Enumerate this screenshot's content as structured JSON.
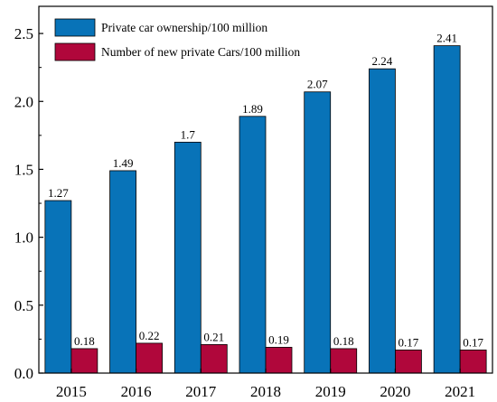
{
  "chart_data": {
    "type": "bar",
    "categories": [
      "2015",
      "2016",
      "2017",
      "2018",
      "2019",
      "2020",
      "2021"
    ],
    "series": [
      {
        "name": "Private car ownership/100 million",
        "color": "#0873B8",
        "values": [
          1.27,
          1.49,
          1.7,
          1.89,
          2.07,
          2.24,
          2.41
        ],
        "labels": [
          "1.27",
          "1.49",
          "1.7",
          "1.89",
          "2.07",
          "2.24",
          "2.41"
        ]
      },
      {
        "name": "Number of new private Cars/100 million",
        "color": "#B0073B",
        "values": [
          0.18,
          0.22,
          0.21,
          0.19,
          0.18,
          0.17,
          0.17
        ],
        "labels": [
          "0.18",
          "0.22",
          "0.21",
          "0.19",
          "0.18",
          "0.17",
          "0.17"
        ]
      }
    ],
    "yticks": [
      "0.0",
      "0.5",
      "1.0",
      "1.5",
      "2.0",
      "2.5"
    ],
    "title": "",
    "xlabel": "",
    "ylabel": "",
    "ylim": [
      0,
      2.7
    ],
    "grid": false,
    "legend_position": "top-left"
  }
}
